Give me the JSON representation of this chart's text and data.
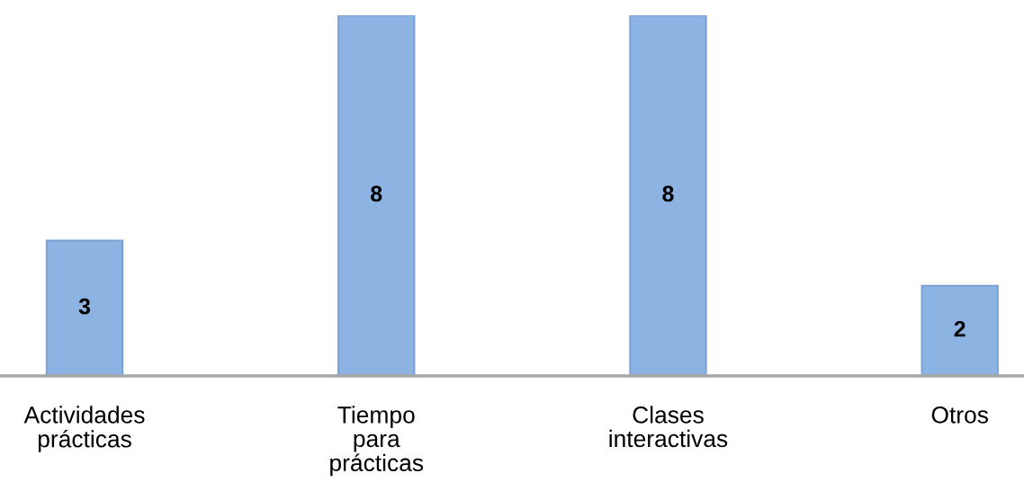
{
  "chart_data": {
    "type": "bar",
    "categories": [
      "Actividades\nprácticas",
      "Tiempo\npara\nprácticas",
      "Clases\ninteractivas",
      "Otros"
    ],
    "values": [
      3,
      8,
      8,
      2
    ],
    "color": "#8db3e2",
    "data_labels": true,
    "ylim": [
      0,
      8
    ],
    "grid": false,
    "legend": false
  }
}
